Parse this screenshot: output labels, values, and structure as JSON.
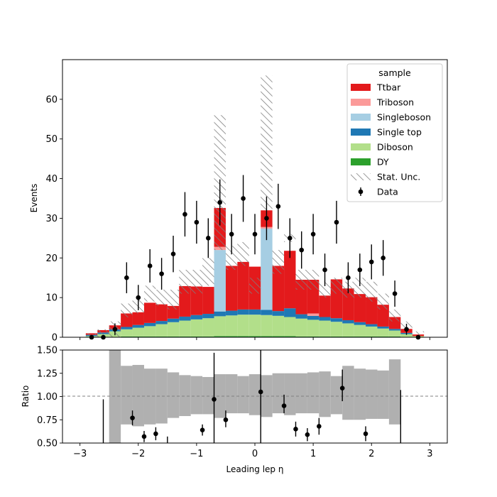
{
  "chart_data": {
    "type": "bar",
    "subtype": "stacked-histogram-with-ratio",
    "xlabel": "Leading lep η",
    "bin_edges": [
      -2.9,
      -2.7,
      -2.5,
      -2.3,
      -2.1,
      -1.9,
      -1.7,
      -1.5,
      -1.3,
      -1.1,
      -0.9,
      -0.7,
      -0.5,
      -0.3,
      -0.1,
      0.1,
      0.3,
      0.5,
      0.7,
      0.9,
      1.1,
      1.3,
      1.5,
      1.7,
      1.9,
      2.1,
      2.3,
      2.5,
      2.7,
      2.9
    ],
    "main_panel": {
      "ylabel": "Events",
      "xlim": [
        -3.3,
        3.3
      ],
      "ylim": [
        0,
        70
      ],
      "xticks": [
        "−3",
        "−2",
        "−1",
        "0",
        "1",
        "2",
        "3"
      ],
      "yticks": [
        "0",
        "10",
        "20",
        "30",
        "40",
        "50",
        "60"
      ],
      "legend": {
        "title": "sample",
        "placement": "top-right",
        "entries": [
          "Ttbar",
          "Triboson",
          "Singleboson",
          "Single top",
          "Diboson",
          "DY",
          "Stat. Unc.",
          "Data"
        ]
      },
      "series": [
        {
          "name": "DY",
          "color": "#2ca02c",
          "values": [
            0,
            0,
            0,
            0.2,
            0.2,
            0.2,
            0.2,
            0.2,
            0.2,
            0.2,
            0.2,
            0.3,
            0.3,
            0.3,
            0.3,
            0.3,
            0.3,
            0.3,
            0.2,
            0.2,
            0.2,
            0.2,
            0.2,
            0.2,
            0.2,
            0.2,
            0.2,
            0,
            0
          ]
        },
        {
          "name": "Diboson",
          "color": "#b2df8a",
          "values": [
            0.3,
            0.8,
            1.5,
            1.8,
            2.2,
            2.6,
            3.1,
            3.6,
            4.0,
            4.3,
            4.6,
            5.0,
            5.2,
            5.4,
            5.4,
            5.3,
            5.1,
            4.8,
            4.5,
            4.2,
            4.0,
            3.7,
            3.3,
            2.9,
            2.5,
            2.0,
            1.5,
            0.8,
            0.3
          ]
        },
        {
          "name": "Single top",
          "color": "#1f78b4",
          "values": [
            0.3,
            0.4,
            0.5,
            0.6,
            0.7,
            0.8,
            0.8,
            0.9,
            1.0,
            1.1,
            1.1,
            1.2,
            1.2,
            1.3,
            1.3,
            1.3,
            1.2,
            2.2,
            1.1,
            1.0,
            0.9,
            0.9,
            0.8,
            0.7,
            0.6,
            0.5,
            0.4,
            0.3,
            0
          ]
        },
        {
          "name": "Singleboson",
          "color": "#a6cee3",
          "values": [
            0,
            0,
            0,
            0,
            0,
            0,
            0,
            0,
            0,
            0,
            0,
            15.5,
            0,
            0,
            0,
            20.5,
            0,
            0,
            0,
            0,
            0,
            0,
            0,
            0,
            0,
            0,
            0,
            0,
            0
          ]
        },
        {
          "name": "Triboson",
          "color": "#fb9a99",
          "values": [
            0,
            0,
            0,
            0,
            0,
            0,
            0,
            0,
            0,
            0,
            0,
            0.8,
            0,
            0,
            0,
            0.4,
            0,
            0,
            0,
            0.6,
            0,
            0,
            0,
            0,
            0,
            0,
            0,
            0,
            0
          ]
        },
        {
          "name": "Ttbar",
          "color": "#e31a1c",
          "values": [
            0.4,
            0.6,
            1.0,
            3.4,
            3.2,
            5.1,
            4.2,
            3.2,
            7.7,
            7.2,
            6.8,
            9.8,
            11.3,
            12.0,
            10.8,
            4.2,
            11.4,
            14.5,
            8.7,
            8.5,
            5.4,
            9.8,
            8.0,
            7.1,
            6.8,
            5.5,
            3.0,
            1.0,
            0.4
          ]
        }
      ],
      "stat_unc_band": [
        [
          0,
          1
        ],
        [
          0,
          2
        ],
        [
          0,
          4
        ],
        [
          5,
          8.5
        ],
        [
          6,
          9.5
        ],
        [
          9,
          13
        ],
        [
          8,
          12
        ],
        [
          7,
          12
        ],
        [
          11,
          17
        ],
        [
          11,
          17
        ],
        [
          13,
          20
        ],
        [
          22,
          56
        ],
        [
          17,
          23
        ],
        [
          18,
          24
        ],
        [
          11,
          15
        ],
        [
          32,
          66
        ],
        [
          16,
          22
        ],
        [
          24,
          26
        ],
        [
          12,
          17
        ],
        [
          12,
          17
        ],
        [
          10,
          14
        ],
        [
          11,
          15
        ],
        [
          10,
          14
        ],
        [
          10,
          15
        ],
        [
          9,
          14
        ],
        [
          7,
          11
        ],
        [
          4,
          7
        ],
        [
          2,
          4
        ],
        [
          0.5,
          1.5
        ]
      ],
      "data": {
        "name": "Data",
        "color": "#000000",
        "x": [
          -2.8,
          -2.6,
          -2.4,
          -2.2,
          -2.0,
          -1.8,
          -1.6,
          -1.4,
          -1.2,
          -1.0,
          -0.8,
          -0.6,
          -0.4,
          -0.2,
          0.0,
          0.2,
          0.4,
          0.6,
          0.8,
          1.0,
          1.2,
          1.4,
          1.6,
          1.8,
          2.0,
          2.2,
          2.4,
          2.6,
          2.8
        ],
        "y": [
          0,
          0,
          2,
          15,
          10,
          18,
          16,
          21,
          31,
          29,
          25,
          34,
          26,
          35,
          26,
          30,
          33,
          25,
          22,
          26,
          17,
          29,
          15,
          17,
          19,
          20,
          11,
          2,
          0
        ],
        "err": [
          0,
          0,
          1.5,
          3.9,
          3.2,
          4.2,
          4.0,
          4.6,
          5.6,
          5.4,
          5.0,
          5.8,
          5.1,
          5.9,
          5.1,
          5.5,
          5.7,
          5.0,
          4.7,
          5.1,
          4.1,
          5.4,
          3.9,
          4.1,
          4.4,
          4.5,
          3.3,
          1.4,
          0
        ]
      }
    },
    "ratio_panel": {
      "ylabel": "Ratio",
      "ylim": [
        0.5,
        1.5
      ],
      "yticks": [
        "0.50",
        "0.75",
        "1.00",
        "1.25",
        "1.50"
      ],
      "reference_line": 1.0,
      "unc_band_color": "#b0b0b0",
      "unc_band": [
        [
          1.0,
          1.0
        ],
        [
          1.0,
          1.0
        ],
        [
          0.3,
          1.5
        ],
        [
          0.7,
          1.33
        ],
        [
          0.68,
          1.34
        ],
        [
          0.7,
          1.3
        ],
        [
          0.71,
          1.3
        ],
        [
          0.77,
          1.26
        ],
        [
          0.79,
          1.23
        ],
        [
          0.81,
          1.22
        ],
        [
          0.81,
          1.21
        ],
        [
          0.77,
          1.24
        ],
        [
          0.82,
          1.24
        ],
        [
          0.82,
          1.22
        ],
        [
          0.8,
          1.24
        ],
        [
          0.78,
          1.23
        ],
        [
          0.82,
          1.25
        ],
        [
          0.8,
          1.25
        ],
        [
          0.82,
          1.25
        ],
        [
          0.82,
          1.26
        ],
        [
          0.78,
          1.27
        ],
        [
          0.81,
          1.22
        ],
        [
          0.75,
          1.33
        ],
        [
          0.75,
          1.3
        ],
        [
          0.76,
          1.29
        ],
        [
          0.76,
          1.28
        ],
        [
          0.7,
          1.4
        ],
        [
          1.0,
          1.0
        ],
        [
          1.0,
          1.0
        ]
      ],
      "points": {
        "x": [
          -2.6,
          -2.1,
          -1.9,
          -1.7,
          -1.5,
          -0.9,
          -0.7,
          -0.5,
          0.1,
          0.5,
          0.7,
          0.9,
          1.1,
          1.5,
          1.9,
          2.5
        ],
        "y": [
          0.5,
          0.77,
          0.57,
          0.6,
          0.5,
          0.64,
          0.97,
          0.75,
          1.05,
          0.9,
          0.65,
          0.59,
          0.68,
          1.09,
          0.6,
          0.5
        ],
        "err_lo": [
          0.0,
          0.08,
          0.06,
          0.07,
          0.0,
          0.06,
          0.5,
          0.08,
          0.6,
          0.08,
          0.08,
          0.07,
          0.09,
          0.14,
          0.08,
          0.0
        ],
        "err_hi": [
          0.47,
          0.08,
          0.06,
          0.07,
          0.07,
          0.06,
          0.5,
          0.1,
          0.6,
          0.12,
          0.08,
          0.07,
          0.09,
          0.2,
          0.08,
          0.57
        ]
      }
    }
  }
}
